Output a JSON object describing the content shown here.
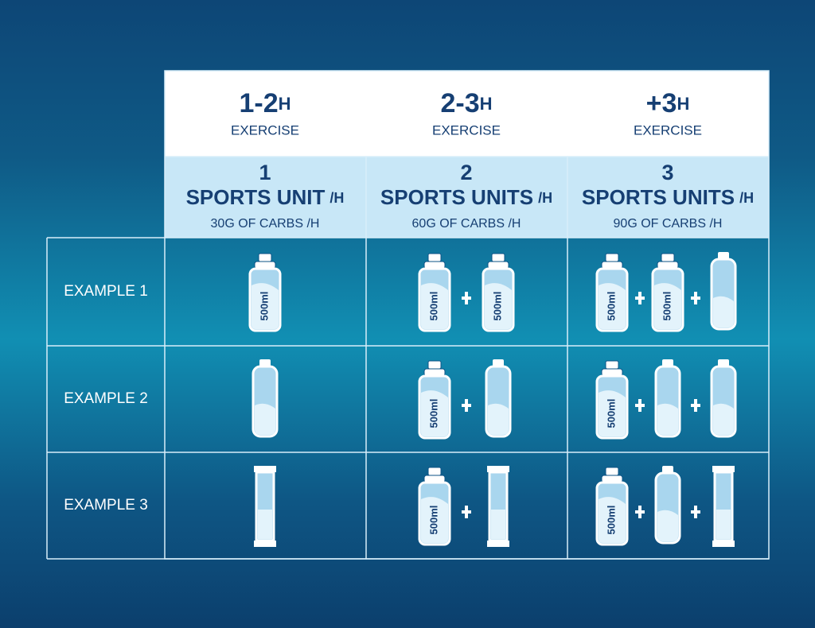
{
  "columns": [
    {
      "duration": "1-2",
      "duration_unit": "H",
      "label": "EXERCISE",
      "units_number": "1",
      "units_text": "SPORTS UNIT",
      "units_per": "/H",
      "carbs": "30G OF CARBS /H"
    },
    {
      "duration": "2-3",
      "duration_unit": "H",
      "label": "EXERCISE",
      "units_number": "2",
      "units_text": "SPORTS UNITS",
      "units_per": "/H",
      "carbs": "60G OF CARBS /H"
    },
    {
      "duration": "+3",
      "duration_unit": "H",
      "label": "EXERCISE",
      "units_number": "3",
      "units_text": "SPORTS UNITS",
      "units_per": "/H",
      "carbs": "90G OF CARBS /H"
    }
  ],
  "rows": [
    "EXAMPLE 1",
    "EXAMPLE 2",
    "EXAMPLE 3"
  ],
  "bottle_label": "500ml"
}
